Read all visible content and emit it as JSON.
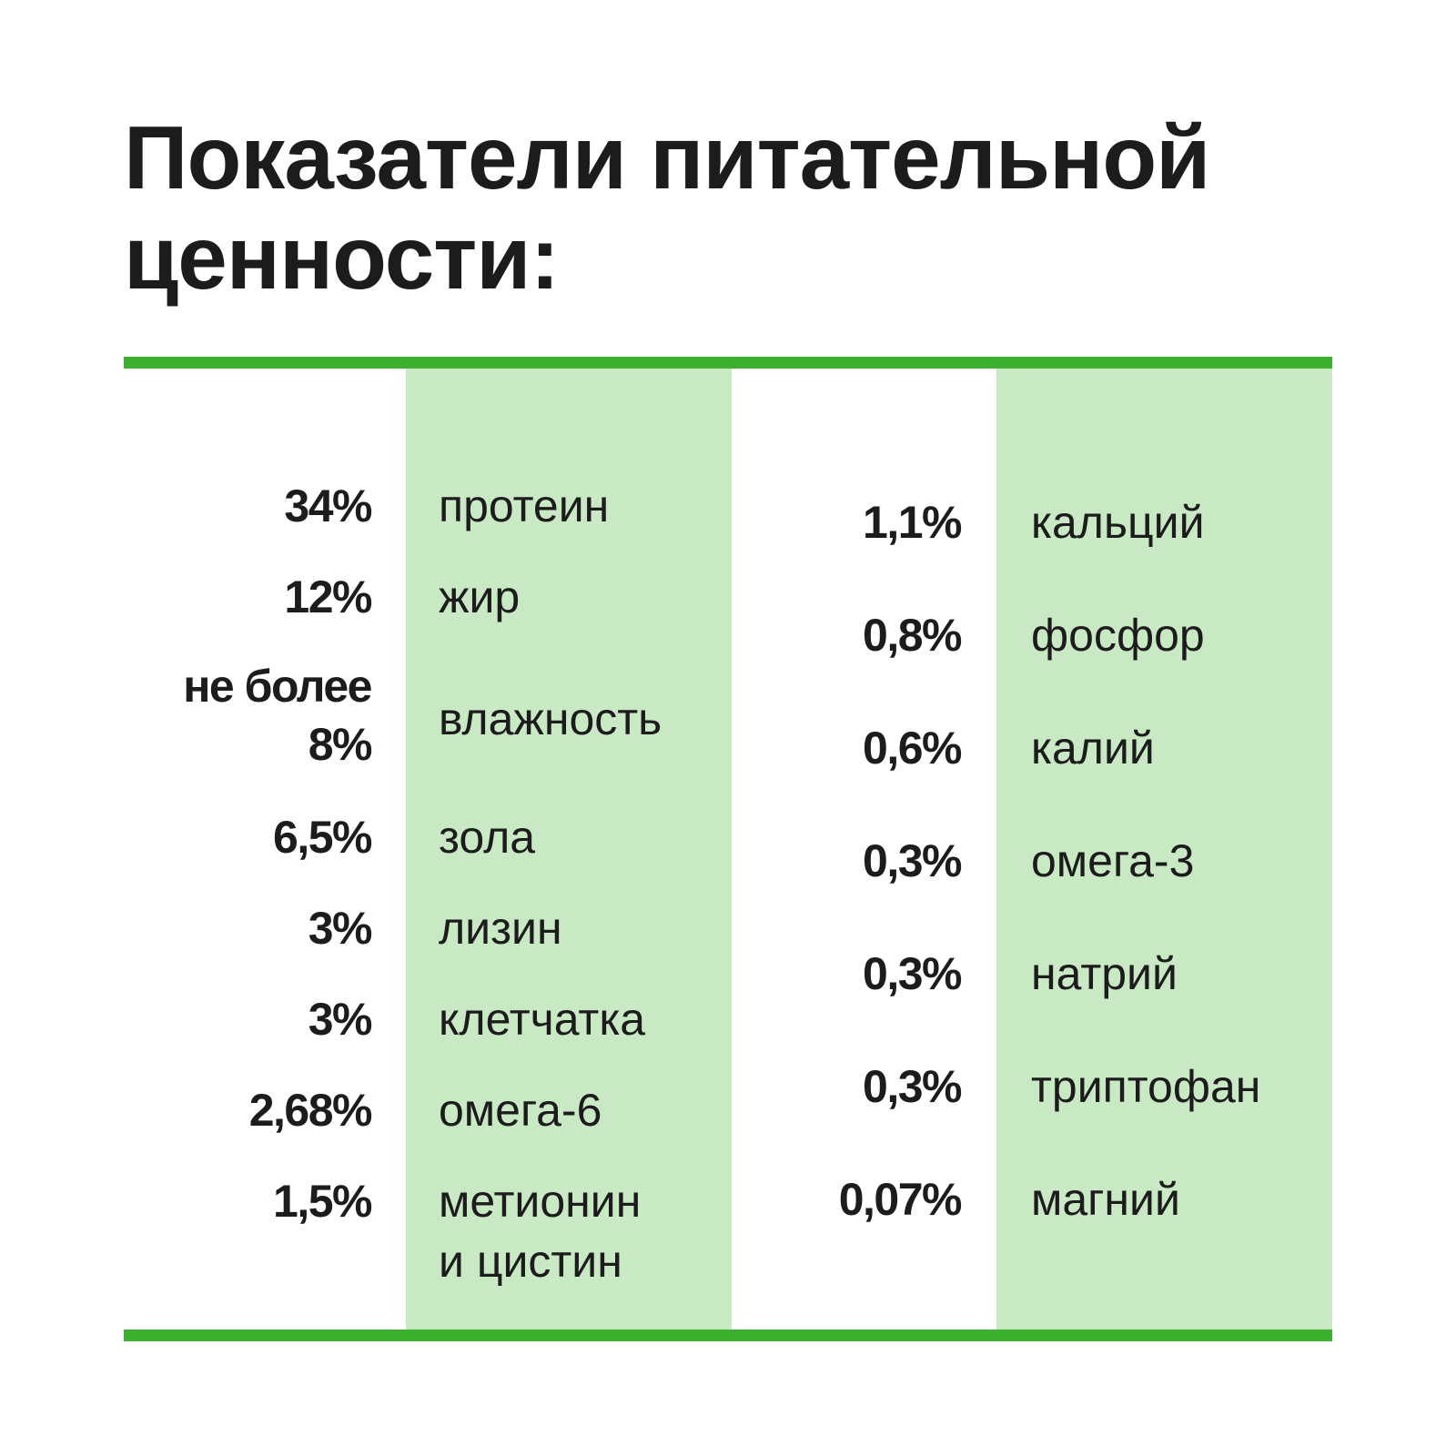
{
  "title": {
    "line1": "Показатели питательной",
    "line2": "ценности:"
  },
  "colors": {
    "rule": "#3db02f",
    "band": "#c9e8c4",
    "text": "#1c1c1c"
  },
  "left_column": [
    {
      "value": "34%",
      "label": "протеин"
    },
    {
      "value": "12%",
      "label": "жир"
    },
    {
      "value_line1": "не более",
      "value_line2": "8%",
      "label": "влажность"
    },
    {
      "value": "6,5%",
      "label": "зола"
    },
    {
      "value": "3%",
      "label": "лизин"
    },
    {
      "value": "3%",
      "label": "клетчатка"
    },
    {
      "value": "2,68%",
      "label": "омега-6"
    },
    {
      "value": "1,5%",
      "label_line1": "метионин",
      "label_line2": "и цистин"
    }
  ],
  "right_column": [
    {
      "value": "1,1%",
      "label": "кальций"
    },
    {
      "value": "0,8%",
      "label": "фосфор"
    },
    {
      "value": "0,6%",
      "label": "калий"
    },
    {
      "value": "0,3%",
      "label": "омега-3"
    },
    {
      "value": "0,3%",
      "label": "натрий"
    },
    {
      "value": "0,3%",
      "label": "триптофан"
    },
    {
      "value": "0,07%",
      "label": "магний"
    }
  ]
}
